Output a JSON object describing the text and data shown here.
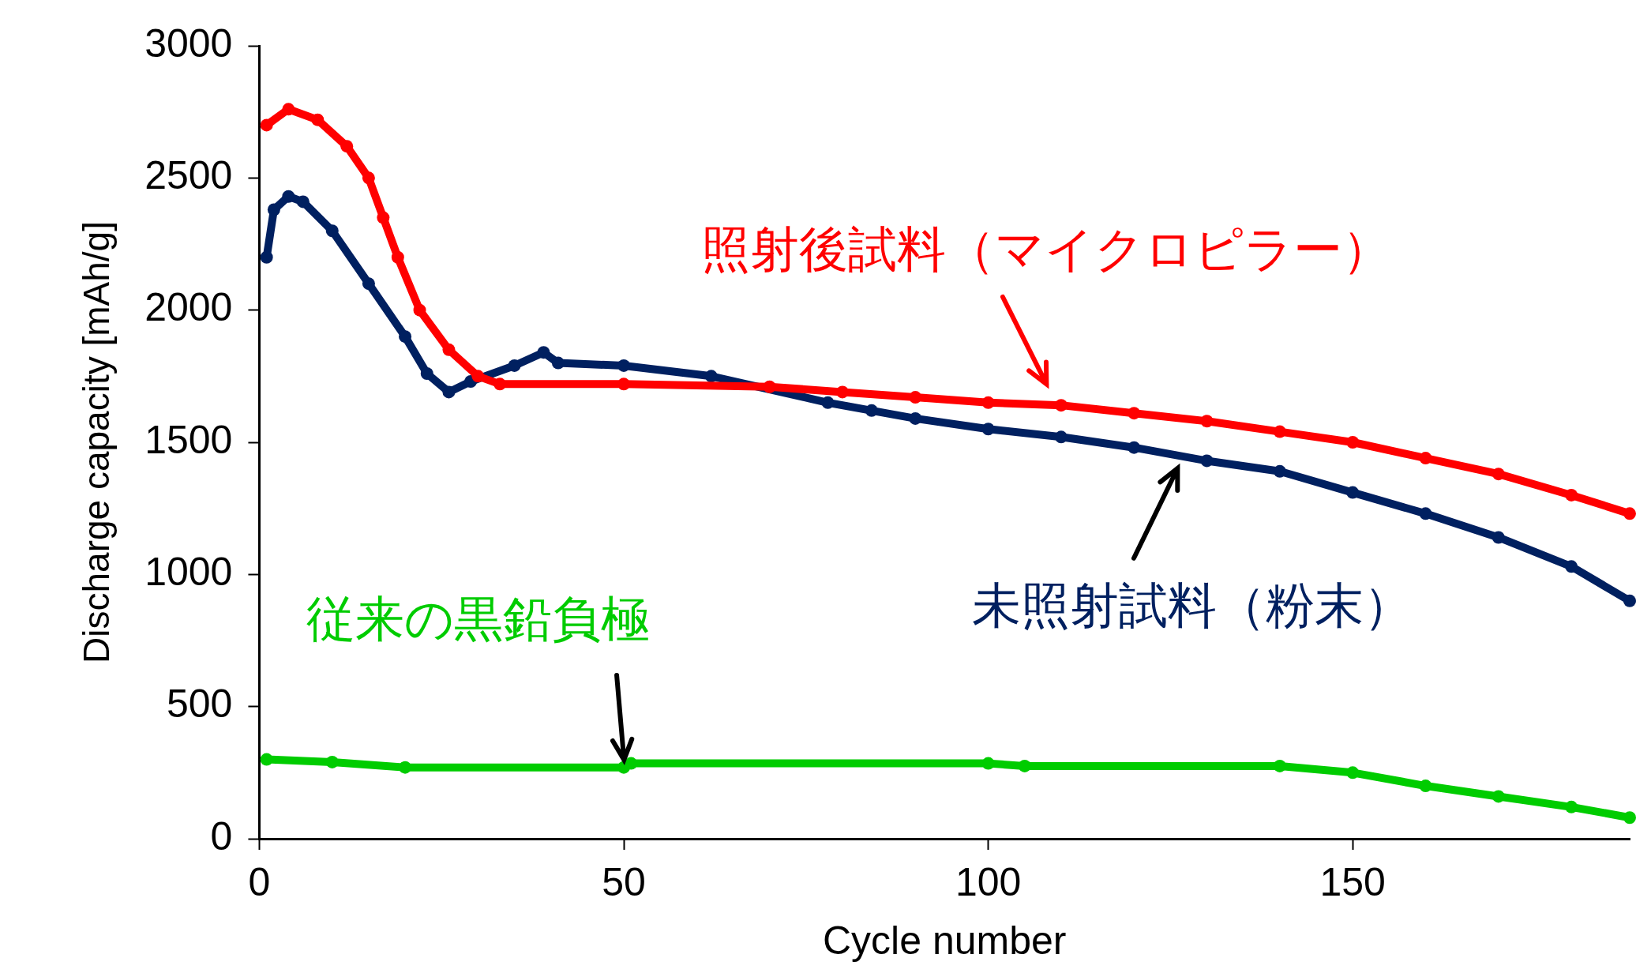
{
  "chart_data": {
    "type": "line",
    "xlabel": "Cycle number",
    "ylabel": "Discharge capacity [mAh/g]",
    "xlim": [
      0,
      188
    ],
    "xticks": [
      0,
      50,
      100,
      150
    ],
    "ylim": [
      0,
      3000
    ],
    "yticks": [
      0,
      500,
      1000,
      1500,
      2000,
      2500,
      3000
    ],
    "grid": false,
    "legend": false,
    "marker": "circle",
    "series": [
      {
        "name": "照射後試料（マイクロピラー）",
        "color": "#ff0000",
        "x": [
          1,
          4,
          8,
          12,
          15,
          17,
          19,
          22,
          26,
          30,
          33,
          50,
          70,
          80,
          90,
          100,
          110,
          120,
          130,
          140,
          150,
          160,
          170,
          180,
          188
        ],
        "values": [
          2700,
          2760,
          2720,
          2620,
          2500,
          2350,
          2200,
          2000,
          1850,
          1750,
          1720,
          1720,
          1710,
          1690,
          1670,
          1650,
          1640,
          1610,
          1580,
          1540,
          1500,
          1440,
          1380,
          1300,
          1230
        ]
      },
      {
        "name": "未照射試料（粉末）",
        "color": "#002060",
        "x": [
          1,
          2,
          4,
          6,
          10,
          15,
          20,
          23,
          26,
          29,
          35,
          39,
          41,
          50,
          62,
          78,
          84,
          90,
          100,
          110,
          120,
          130,
          140,
          150,
          160,
          170,
          180,
          188
        ],
        "values": [
          2200,
          2380,
          2430,
          2410,
          2300,
          2100,
          1900,
          1760,
          1690,
          1730,
          1790,
          1840,
          1800,
          1790,
          1750,
          1650,
          1620,
          1590,
          1550,
          1520,
          1480,
          1430,
          1390,
          1310,
          1230,
          1140,
          1030,
          900
        ]
      },
      {
        "name": "従来の黒鉛負極",
        "color": "#00cc00",
        "x": [
          1,
          10,
          20,
          50,
          51,
          100,
          105,
          140,
          150,
          160,
          170,
          180,
          188
        ],
        "values": [
          300,
          290,
          270,
          270,
          285,
          285,
          275,
          275,
          250,
          200,
          160,
          120,
          80
        ]
      }
    ]
  }
}
